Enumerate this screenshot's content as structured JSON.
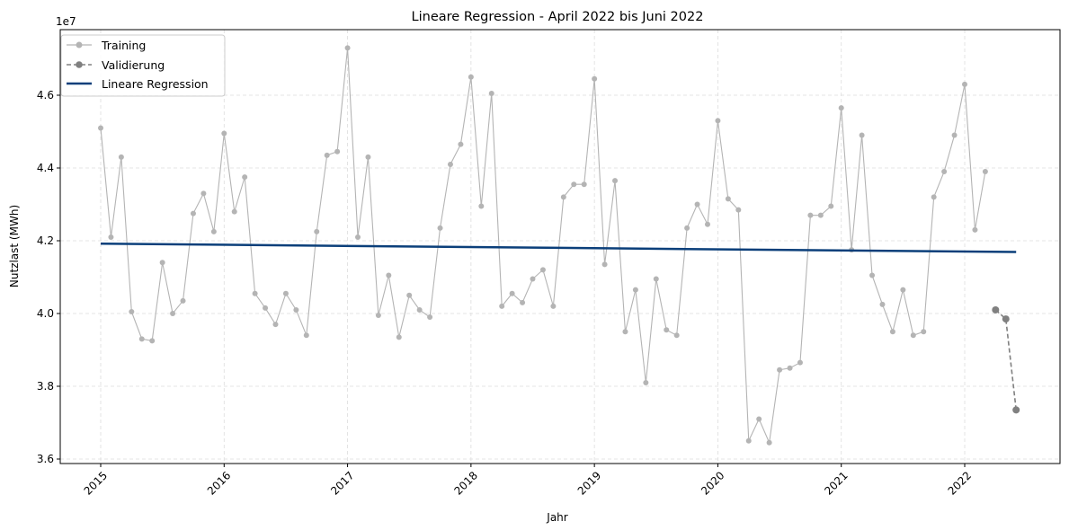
{
  "chart_data": {
    "type": "line",
    "title": "Lineare Regression  - April 2022 bis Juni 2022",
    "xlabel": "Jahr",
    "ylabel": "Nutzlast (MWh)",
    "y_offset_label": "1e7",
    "y_scale": 10000000,
    "xlim": [
      2015,
      2022.5
    ],
    "ylim": [
      35900000.0,
      47900000.0
    ],
    "x_ticks": [
      2015,
      2016,
      2017,
      2018,
      2019,
      2020,
      2021,
      2022
    ],
    "x_tick_labels": [
      "2015",
      "2016",
      "2017",
      "2018",
      "2019",
      "2020",
      "2021",
      "2022"
    ],
    "y_ticks": [
      36000000.0,
      38000000.0,
      40000000.0,
      42000000.0,
      44000000.0,
      46000000.0
    ],
    "y_tick_labels": [
      "3.6",
      "3.8",
      "4.0",
      "4.2",
      "4.4",
      "4.6"
    ],
    "grid": true,
    "legend_position": "top-left",
    "legend": [
      "Training",
      "Validierung",
      "Lineare Regression"
    ],
    "series": [
      {
        "name": "Training",
        "color": "#b4b4b4",
        "style": "solid-marker",
        "x": [
          "2015-01",
          "2015-02",
          "2015-03",
          "2015-04",
          "2015-05",
          "2015-06",
          "2015-07",
          "2015-08",
          "2015-09",
          "2015-10",
          "2015-11",
          "2015-12",
          "2016-01",
          "2016-02",
          "2016-03",
          "2016-04",
          "2016-05",
          "2016-06",
          "2016-07",
          "2016-08",
          "2016-09",
          "2016-10",
          "2016-11",
          "2016-12",
          "2017-01",
          "2017-02",
          "2017-03",
          "2017-04",
          "2017-05",
          "2017-06",
          "2017-07",
          "2017-08",
          "2017-09",
          "2017-10",
          "2017-11",
          "2017-12",
          "2018-01",
          "2018-02",
          "2018-03",
          "2018-04",
          "2018-05",
          "2018-06",
          "2018-07",
          "2018-08",
          "2018-09",
          "2018-10",
          "2018-11",
          "2018-12",
          "2019-01",
          "2019-02",
          "2019-03",
          "2019-04",
          "2019-05",
          "2019-06",
          "2019-07",
          "2019-08",
          "2019-09",
          "2019-10",
          "2019-11",
          "2019-12",
          "2020-01",
          "2020-02",
          "2020-03",
          "2020-04",
          "2020-05",
          "2020-06",
          "2020-07",
          "2020-08",
          "2020-09",
          "2020-10",
          "2020-11",
          "2020-12",
          "2021-01",
          "2021-02",
          "2021-03",
          "2021-04",
          "2021-05",
          "2021-06",
          "2021-07",
          "2021-08",
          "2021-09",
          "2021-10",
          "2021-11",
          "2021-12",
          "2022-01",
          "2022-02",
          "2022-03"
        ],
        "values": [
          45100000,
          42100000,
          44300000,
          40050000,
          39300000,
          39250000,
          41400000,
          40000000,
          40350000,
          42750000,
          43300000,
          42250000,
          44950000,
          42800000,
          43750000,
          40550000,
          40150000,
          39700000,
          40550000,
          40100000,
          39400000,
          42250000,
          44350000,
          44450000,
          47300000,
          42100000,
          44300000,
          39950000,
          41050000,
          39350000,
          40500000,
          40100000,
          39900000,
          42350000,
          44100000,
          44650000,
          46500000,
          42950000,
          46050000,
          40200000,
          40550000,
          40300000,
          40950000,
          41200000,
          40200000,
          43200000,
          43550000,
          43550000,
          46450000,
          41350000,
          43650000,
          39500000,
          40650000,
          38100000,
          40950000,
          39550000,
          39400000,
          42350000,
          43000000,
          42450000,
          45300000,
          43150000,
          42850000,
          36500000,
          37100000,
          36450000,
          38450000,
          38500000,
          38650000,
          42700000,
          42700000,
          42950000,
          45650000,
          41750000,
          44900000,
          41050000,
          40250000,
          39500000,
          40650000,
          39400000,
          39500000,
          43200000,
          43900000,
          44900000,
          46300000,
          42300000,
          43900000
        ]
      },
      {
        "name": "Validierung",
        "color": "#808080",
        "style": "dashed-marker",
        "x": [
          "2022-04",
          "2022-05",
          "2022-06"
        ],
        "values": [
          40100000,
          39850000,
          37350000
        ]
      },
      {
        "name": "Lineare Regression",
        "color": "#0b3f7a",
        "style": "solid",
        "x": [
          "2015-01",
          "2022-06"
        ],
        "values": [
          41920000,
          41690000
        ]
      }
    ]
  }
}
